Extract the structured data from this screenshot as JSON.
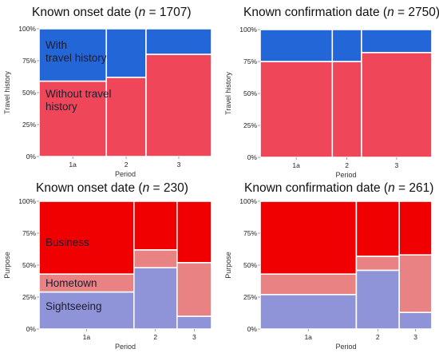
{
  "chart_data": [
    {
      "type": "bar",
      "stacked": "100% mosaic",
      "title": "Known onset date (n = 1707)",
      "title_parts": {
        "pre": "Known onset date (",
        "n": "n",
        "post": " = 1707)"
      },
      "xlabel": "Period",
      "ylabel": "Travel history",
      "ylim": [
        0,
        100
      ],
      "yticks": [
        "0%",
        "25%",
        "50%",
        "75%",
        "100%"
      ],
      "categories": [
        "1a",
        "2",
        "3"
      ],
      "category_widths": [
        0.39,
        0.23,
        0.38
      ],
      "series": [
        {
          "name": "Without travel history",
          "color": "#ef4759",
          "values": [
            59,
            62,
            80
          ]
        },
        {
          "name": "With travel history",
          "color": "#2366d8",
          "values": [
            41,
            38,
            20
          ]
        }
      ],
      "segment_labels": [
        "Without travel history",
        "With travel history"
      ]
    },
    {
      "type": "bar",
      "stacked": "100% mosaic",
      "title": "Known confirmation date (n = 2750)",
      "title_parts": {
        "pre": "Known confirmation date (",
        "n": "n",
        "post": " = 2750)"
      },
      "xlabel": "Period",
      "ylabel": "Travel history",
      "ylim": [
        0,
        100
      ],
      "yticks": [
        "0%",
        "25%",
        "50%",
        "75%",
        "100%"
      ],
      "categories": [
        "1a",
        "2",
        "3"
      ],
      "category_widths": [
        0.42,
        0.17,
        0.41
      ],
      "series": [
        {
          "name": "Without travel history",
          "color": "#ef4759",
          "values": [
            75,
            75,
            82
          ]
        },
        {
          "name": "With travel history",
          "color": "#2366d8",
          "values": [
            25,
            25,
            18
          ]
        }
      ],
      "segment_labels": []
    },
    {
      "type": "bar",
      "stacked": "100% mosaic",
      "title": "Known onset date (n = 230)",
      "title_parts": {
        "pre": "Known onset date (",
        "n": "n",
        "post": " = 230)"
      },
      "xlabel": "Period",
      "ylabel": "Purpose",
      "ylim": [
        0,
        100
      ],
      "yticks": [
        "0%",
        "25%",
        "50%",
        "75%",
        "100%"
      ],
      "categories": [
        "1a",
        "2",
        "3"
      ],
      "category_widths": [
        0.55,
        0.25,
        0.2
      ],
      "series": [
        {
          "name": "Sightseeing",
          "color": "#8f93d8",
          "values": [
            29,
            48,
            10
          ]
        },
        {
          "name": "Hometown",
          "color": "#e98282",
          "values": [
            14,
            14,
            42
          ]
        },
        {
          "name": "Business",
          "color": "#f00000",
          "values": [
            57,
            38,
            48
          ]
        }
      ],
      "segment_labels": [
        "Business",
        "Hometown",
        "Sightseeing"
      ]
    },
    {
      "type": "bar",
      "stacked": "100% mosaic",
      "title": "Known confirmation date (n = 261)",
      "title_parts": {
        "pre": "Known confirmation date (",
        "n": "n",
        "post": " = 261)"
      },
      "xlabel": "Period",
      "ylabel": "Purpose",
      "ylim": [
        0,
        100
      ],
      "yticks": [
        "0%",
        "25%",
        "50%",
        "75%",
        "100%"
      ],
      "categories": [
        "1a",
        "2",
        "3"
      ],
      "category_widths": [
        0.56,
        0.25,
        0.19
      ],
      "series": [
        {
          "name": "Sightseeing",
          "color": "#8f93d8",
          "values": [
            27,
            46,
            13
          ]
        },
        {
          "name": "Hometown",
          "color": "#e98282",
          "values": [
            16,
            11,
            45
          ]
        },
        {
          "name": "Business",
          "color": "#f00000",
          "values": [
            57,
            43,
            42
          ]
        }
      ],
      "segment_labels": []
    }
  ]
}
